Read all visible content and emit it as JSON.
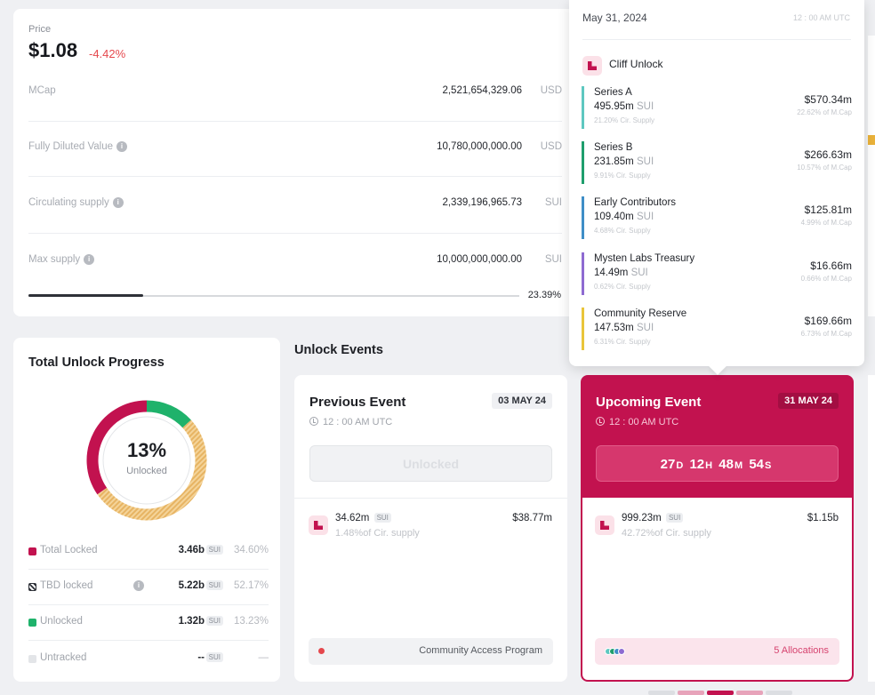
{
  "price": {
    "label": "Price",
    "value": "$1.08",
    "change": "-4.42%"
  },
  "stats": [
    {
      "label": "MCap",
      "value": "2,521,654,329.06",
      "unit": "USD",
      "info": false
    },
    {
      "label": "Fully Diluted Value",
      "value": "10,780,000,000.00",
      "unit": "USD",
      "info": true
    },
    {
      "label": "Circulating supply",
      "value": "2,339,196,965.73",
      "unit": "SUI",
      "info": true
    },
    {
      "label": "Max supply",
      "value": "10,000,000,000.00",
      "unit": "SUI",
      "info": true
    }
  ],
  "supply_progress": {
    "percent_label": "23.39%",
    "fraction": 0.2339
  },
  "tooltip": {
    "date": "May 31, 2024",
    "time": "12 : 00 AM UTC",
    "heading": "Cliff Unlock",
    "allocations": [
      {
        "name": "Series A",
        "amount": "495.95m",
        "unit": "SUI",
        "supply": "21.20% Cir. Supply",
        "usd": "$570.34m",
        "mcap": "22.62% of M.Cap",
        "color": "#5ec8c0"
      },
      {
        "name": "Series B",
        "amount": "231.85m",
        "unit": "SUI",
        "supply": "9.91% Cir. Supply",
        "usd": "$266.63m",
        "mcap": "10.57% of M.Cap",
        "color": "#1f9e6d"
      },
      {
        "name": "Early Contributors",
        "amount": "109.40m",
        "unit": "SUI",
        "supply": "4.68% Cir. Supply",
        "usd": "$125.81m",
        "mcap": "4.99% of M.Cap",
        "color": "#3f8ec7"
      },
      {
        "name": "Mysten Labs Treasury",
        "amount": "14.49m",
        "unit": "SUI",
        "supply": "0.62% Cir. Supply",
        "usd": "$16.66m",
        "mcap": "0.66% of M.Cap",
        "color": "#8e6bd1"
      },
      {
        "name": "Community Reserve",
        "amount": "147.53m",
        "unit": "SUI",
        "supply": "6.31% Cir. Supply",
        "usd": "$169.66m",
        "mcap": "6.73% of M.Cap",
        "color": "#e9c53a"
      }
    ]
  },
  "progress": {
    "title": "Total Unlock Progress",
    "percent": "13%",
    "sub": "Unlocked",
    "legend": [
      {
        "label": "Total Locked",
        "value": "3.46b",
        "unit": "SUI",
        "pct": "34.60%",
        "color": "#c2124f"
      },
      {
        "label": "TBD locked",
        "value": "5.22b",
        "unit": "SUI",
        "pct": "52.17%",
        "color": "#2e3138"
      },
      {
        "label": "Unlocked",
        "value": "1.32b",
        "unit": "SUI",
        "pct": "13.23%",
        "color": "#1fb26b"
      },
      {
        "label": "Untracked",
        "value": "--",
        "unit": "SUI",
        "pct": "—",
        "color": "#e3e5e8"
      }
    ],
    "segments": [
      {
        "name": "Total Locked",
        "fraction": 0.346,
        "color": "#c2124f"
      },
      {
        "name": "TBD locked",
        "fraction": 0.5217,
        "color": "#ebc17a"
      },
      {
        "name": "Unlocked",
        "fraction": 0.1323,
        "color": "#1fb26b"
      }
    ]
  },
  "events": {
    "title": "Unlock Events",
    "previous": {
      "title": "Previous Event",
      "date": "03 MAY 24",
      "time": "12 : 00 AM UTC",
      "button": "Unlocked",
      "amount": "34.62m",
      "unit": "SUI",
      "supply": "1.48%of Cir. supply",
      "usd": "$38.77m",
      "footer": "Community Access Program"
    },
    "upcoming": {
      "title": "Upcoming Event",
      "date": "31 MAY 24",
      "time": "12 : 00 AM UTC",
      "countdown": {
        "d": "27",
        "d_unit": "D",
        "h": "12",
        "h_unit": "H",
        "m": "48",
        "m_unit": "M",
        "s": "54",
        "s_unit": "S"
      },
      "amount": "999.23m",
      "unit": "SUI",
      "supply": "42.72%of Cir. supply",
      "usd": "$1.15b",
      "footer": "5 Allocations",
      "dot_colors": [
        "#5ec8c0",
        "#1f9e6d",
        "#3f8ec7",
        "#8e6bd1"
      ]
    }
  },
  "colors": {
    "accent": "#c2124f",
    "negative": "#e5484d",
    "positive": "#1fb26b"
  }
}
